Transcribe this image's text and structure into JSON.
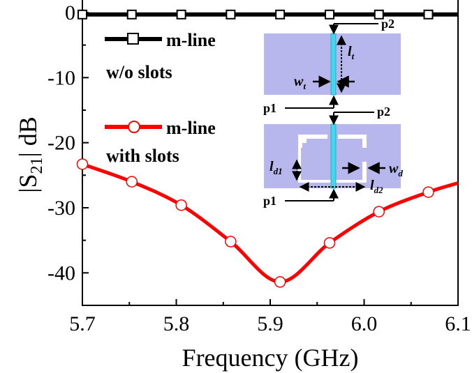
{
  "chart_data": {
    "type": "line",
    "xlabel": "Frequency (GHz)",
    "ylabel_main": "|S",
    "ylabel_sub": "21",
    "ylabel_tail": "| dB",
    "xlim": [
      5.7,
      6.1
    ],
    "ylim": [
      -45,
      0.5
    ],
    "xticks": [
      5.7,
      5.8,
      5.9,
      6.0,
      6.1
    ],
    "xtick_labels": [
      "5.7",
      "5.8",
      "5.9",
      "6.0",
      "6.1"
    ],
    "yticks": [
      0,
      -10,
      -20,
      -30,
      -40
    ],
    "ytick_labels": [
      "0",
      "-10",
      "-20",
      "-30",
      "-40"
    ],
    "grid": false,
    "legend_position": "top-left",
    "series": [
      {
        "name": "m-line w/o slots",
        "legend_line1": "m-line",
        "legend_line2": "w/o slots",
        "color": "#000000",
        "marker": "square",
        "x": [
          5.7,
          5.7526,
          5.8053,
          5.8579,
          5.9105,
          5.9632,
          6.0158,
          6.0684,
          6.1
        ],
        "y": [
          -0.3,
          -0.3,
          -0.3,
          -0.3,
          -0.3,
          -0.3,
          -0.3,
          -0.3,
          -0.3
        ],
        "marker_x": [
          5.7,
          5.7526,
          5.8053,
          5.8579,
          5.9105,
          5.9632,
          6.0158,
          6.0684
        ]
      },
      {
        "name": "m-line with slots",
        "legend_line1": "m-line",
        "legend_line2": "with slots",
        "color": "#ff0000",
        "marker": "circle",
        "x": [
          5.7,
          5.7526,
          5.8053,
          5.8579,
          5.9105,
          5.9632,
          6.0158,
          6.0684,
          6.1
        ],
        "y": [
          -23.3,
          -26.0,
          -29.6,
          -35.2,
          -41.4,
          -35.4,
          -30.6,
          -27.6,
          -26.2
        ],
        "marker_x": [
          5.7,
          5.7526,
          5.8053,
          5.8579,
          5.9105,
          5.9632,
          6.0158,
          6.0684
        ]
      }
    ]
  },
  "inset": {
    "port_top": "p2",
    "port_bottom": "p1",
    "lt": "l",
    "lt_sub": "t",
    "wt": "w",
    "wt_sub": "t",
    "ld1": "l",
    "ld1_sub": "d1",
    "ld2": "l",
    "ld2_sub": "d2",
    "wd": "w",
    "wd_sub": "d",
    "substrate_color": "#b7b7ee",
    "strip_color": "#40d8f0",
    "slot_color": "#ffffff"
  }
}
